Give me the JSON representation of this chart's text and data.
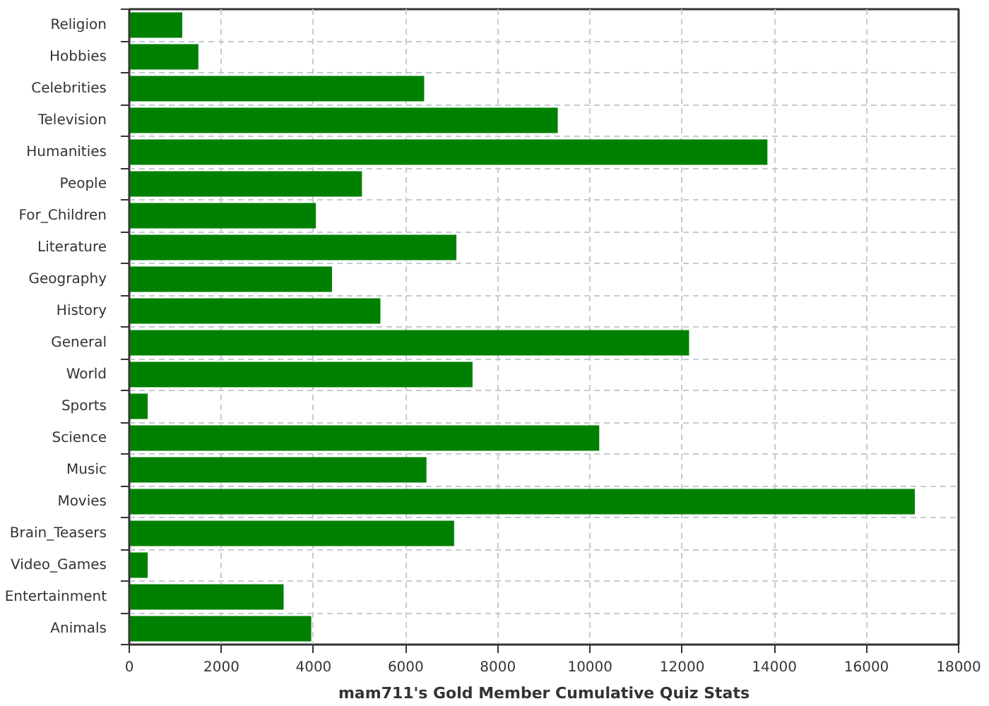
{
  "chart_data": {
    "type": "bar",
    "orientation": "horizontal",
    "categories": [
      "Religion",
      "Hobbies",
      "Celebrities",
      "Television",
      "Humanities",
      "People",
      "For_Children",
      "Literature",
      "Geography",
      "History",
      "General",
      "World",
      "Sports",
      "Science",
      "Music",
      "Movies",
      "Brain_Teasers",
      "Video_Games",
      "Entertainment",
      "Animals"
    ],
    "values": [
      1150,
      1500,
      6400,
      9300,
      13850,
      5050,
      4050,
      7100,
      4400,
      5450,
      12150,
      7450,
      400,
      10200,
      6450,
      17050,
      7050,
      400,
      3350,
      3950
    ],
    "color": "#008000",
    "xlabel": "mam711's Gold Member Cumulative Quiz Stats",
    "xlim": [
      0,
      18000
    ],
    "xticks": [
      0,
      2000,
      4000,
      6000,
      8000,
      10000,
      12000,
      14000,
      16000,
      18000
    ],
    "grid": true
  }
}
